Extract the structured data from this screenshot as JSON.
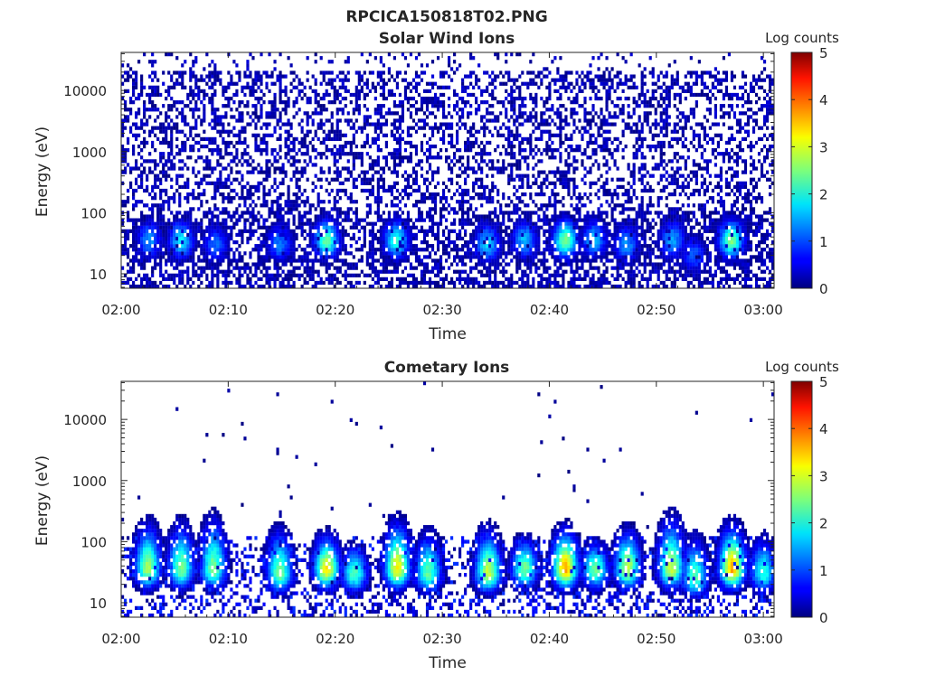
{
  "figure_title": "RPCICA150818T02.PNG",
  "chart_data": [
    {
      "type": "heatmap",
      "title": "Solar Wind Ions",
      "xlabel": "Time",
      "ylabel": "Energy (eV)",
      "x_ticks": [
        "02:00",
        "02:10",
        "02:20",
        "02:30",
        "02:40",
        "02:50",
        "03:00"
      ],
      "x_range_min": [
        0,
        61
      ],
      "y_scale": "log",
      "y_range": [
        5.8,
        42000
      ],
      "y_ticks": [
        {
          "value": 10,
          "label": "10"
        },
        {
          "value": 100,
          "label": "100"
        },
        {
          "value": 1000,
          "label": "1000"
        },
        {
          "value": 10000,
          "label": "10000"
        }
      ],
      "colorbar": {
        "label": "Log counts",
        "min": 0,
        "max": 5,
        "ticks": [
          "0",
          "1",
          "2",
          "3",
          "4",
          "5"
        ]
      },
      "bright_peaks": [
        {
          "t": 2.6,
          "energy": 35,
          "z": 1.5
        },
        {
          "t": 5.6,
          "energy": 35,
          "z": 2.0
        },
        {
          "t": 8.8,
          "energy": 30,
          "z": 1.3
        },
        {
          "t": 14.8,
          "energy": 30,
          "z": 1.4
        },
        {
          "t": 19.2,
          "energy": 35,
          "z": 2.5
        },
        {
          "t": 25.7,
          "energy": 35,
          "z": 2.2
        },
        {
          "t": 34.2,
          "energy": 30,
          "z": 1.8
        },
        {
          "t": 37.7,
          "energy": 35,
          "z": 1.7
        },
        {
          "t": 41.5,
          "energy": 35,
          "z": 2.6
        },
        {
          "t": 44.2,
          "energy": 35,
          "z": 1.7
        },
        {
          "t": 47.2,
          "energy": 30,
          "z": 1.5
        },
        {
          "t": 51.5,
          "energy": 35,
          "z": 1.6
        },
        {
          "t": 53.5,
          "energy": 20,
          "z": 1.2
        },
        {
          "t": 57.0,
          "energy": 35,
          "z": 2.6
        }
      ],
      "background": "sparse low-count (~0–0.5 log counts) noise at all energies 6–40000 eV"
    },
    {
      "type": "heatmap",
      "title": "Cometary Ions",
      "xlabel": "Time",
      "ylabel": "Energy (eV)",
      "x_ticks": [
        "02:00",
        "02:10",
        "02:20",
        "02:30",
        "02:40",
        "02:50",
        "03:00"
      ],
      "x_range_min": [
        0,
        61
      ],
      "y_scale": "log",
      "y_range": [
        5.8,
        42000
      ],
      "y_ticks": [
        {
          "value": 10,
          "label": "10"
        },
        {
          "value": 100,
          "label": "100"
        },
        {
          "value": 1000,
          "label": "1000"
        },
        {
          "value": 10000,
          "label": "10000"
        }
      ],
      "colorbar": {
        "label": "Log counts",
        "min": 0,
        "max": 5,
        "ticks": [
          "0",
          "1",
          "2",
          "3",
          "4",
          "5"
        ]
      },
      "bright_peaks": [
        {
          "t": 2.5,
          "energy": 35,
          "z": 2.8,
          "top": 200
        },
        {
          "t": 5.6,
          "energy": 35,
          "z": 2.6,
          "top": 200
        },
        {
          "t": 8.6,
          "energy": 35,
          "z": 2.6,
          "top": 250
        },
        {
          "t": 14.8,
          "energy": 30,
          "z": 2.6,
          "top": 160
        },
        {
          "t": 19.2,
          "energy": 35,
          "z": 3.3,
          "top": 130
        },
        {
          "t": 21.8,
          "energy": 30,
          "z": 2.4,
          "top": 90
        },
        {
          "t": 25.8,
          "energy": 35,
          "z": 3.3,
          "top": 210
        },
        {
          "t": 28.7,
          "energy": 30,
          "z": 2.5,
          "top": 140
        },
        {
          "t": 34.3,
          "energy": 30,
          "z": 3.0,
          "top": 160
        },
        {
          "t": 37.7,
          "energy": 35,
          "z": 2.6,
          "top": 120
        },
        {
          "t": 41.5,
          "energy": 35,
          "z": 3.7,
          "top": 160
        },
        {
          "t": 44.3,
          "energy": 35,
          "z": 2.6,
          "top": 100
        },
        {
          "t": 47.3,
          "energy": 35,
          "z": 3.0,
          "top": 160
        },
        {
          "t": 51.4,
          "energy": 35,
          "z": 3.0,
          "top": 240
        },
        {
          "t": 53.6,
          "energy": 25,
          "z": 2.4,
          "top": 120
        },
        {
          "t": 57.1,
          "energy": 35,
          "z": 3.7,
          "top": 180
        },
        {
          "t": 60.0,
          "energy": 30,
          "z": 2.2,
          "top": 120
        }
      ],
      "background": "isolated single-count pixels above ~150 eV; moderate counts 15–100 eV"
    }
  ]
}
